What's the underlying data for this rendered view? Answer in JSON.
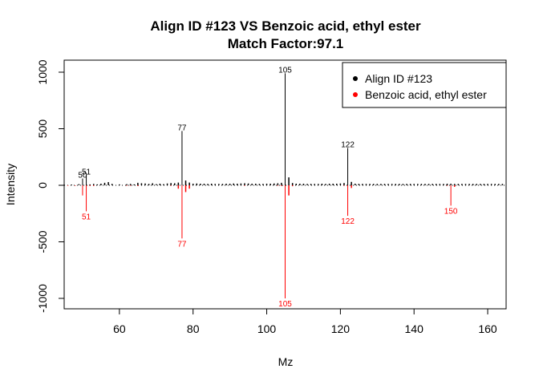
{
  "chart_data": {
    "type": "bar",
    "title_line1": "Align ID #123 VS Benzoic acid, ethyl ester",
    "title_line2": "Match Factor:97.1",
    "xlabel": "Mz",
    "ylabel": "Intensity",
    "xlim": [
      45,
      165
    ],
    "ylim": [
      -1080,
      1080
    ],
    "x_ticks": [
      60,
      80,
      100,
      120,
      140,
      160
    ],
    "y_ticks": [
      -1000,
      -500,
      0,
      500,
      1000
    ],
    "x_tick_labels": [
      "60",
      "80",
      "100",
      "120",
      "140",
      "160"
    ],
    "y_tick_labels": [
      "-1000",
      "-500",
      "0",
      "500",
      "1000"
    ],
    "legend_position": "top-right",
    "series": [
      {
        "name": "Align ID #123",
        "color": "#000000",
        "direction": "up",
        "peaks": [
          {
            "mz": 50,
            "intensity": 60
          },
          {
            "mz": 51,
            "intensity": 90
          },
          {
            "mz": 77,
            "intensity": 480
          },
          {
            "mz": 105,
            "intensity": 990
          },
          {
            "mz": 122,
            "intensity": 330
          }
        ],
        "labels": [
          {
            "mz": 50,
            "intensity": 60,
            "text": "50"
          },
          {
            "mz": 51,
            "intensity": 90,
            "text": "51"
          },
          {
            "mz": 77,
            "intensity": 480,
            "text": "77"
          },
          {
            "mz": 105,
            "intensity": 990,
            "text": "105"
          },
          {
            "mz": 122,
            "intensity": 330,
            "text": "122"
          }
        ],
        "minor_peaks": [
          {
            "mz": 45,
            "intensity": 6
          },
          {
            "mz": 47,
            "intensity": 6
          },
          {
            "mz": 49,
            "intensity": 10
          },
          {
            "mz": 52,
            "intensity": 8
          },
          {
            "mz": 53,
            "intensity": 12
          },
          {
            "mz": 54,
            "intensity": 8
          },
          {
            "mz": 55,
            "intensity": 14
          },
          {
            "mz": 56,
            "intensity": 22
          },
          {
            "mz": 57,
            "intensity": 28
          },
          {
            "mz": 58,
            "intensity": 12
          },
          {
            "mz": 60,
            "intensity": 8
          },
          {
            "mz": 62,
            "intensity": 10
          },
          {
            "mz": 63,
            "intensity": 12
          },
          {
            "mz": 64,
            "intensity": 8
          },
          {
            "mz": 65,
            "intensity": 22
          },
          {
            "mz": 66,
            "intensity": 18
          },
          {
            "mz": 67,
            "intensity": 16
          },
          {
            "mz": 68,
            "intensity": 12
          },
          {
            "mz": 69,
            "intensity": 18
          },
          {
            "mz": 70,
            "intensity": 10
          },
          {
            "mz": 71,
            "intensity": 14
          },
          {
            "mz": 72,
            "intensity": 10
          },
          {
            "mz": 73,
            "intensity": 16
          },
          {
            "mz": 74,
            "intensity": 20
          },
          {
            "mz": 75,
            "intensity": 18
          },
          {
            "mz": 76,
            "intensity": 24
          },
          {
            "mz": 78,
            "intensity": 42
          },
          {
            "mz": 79,
            "intensity": 24
          },
          {
            "mz": 80,
            "intensity": 14
          },
          {
            "mz": 81,
            "intensity": 16
          },
          {
            "mz": 82,
            "intensity": 14
          },
          {
            "mz": 83,
            "intensity": 14
          },
          {
            "mz": 84,
            "intensity": 12
          },
          {
            "mz": 85,
            "intensity": 14
          },
          {
            "mz": 86,
            "intensity": 12
          },
          {
            "mz": 87,
            "intensity": 12
          },
          {
            "mz": 88,
            "intensity": 12
          },
          {
            "mz": 89,
            "intensity": 14
          },
          {
            "mz": 90,
            "intensity": 14
          },
          {
            "mz": 91,
            "intensity": 16
          },
          {
            "mz": 92,
            "intensity": 14
          },
          {
            "mz": 93,
            "intensity": 16
          },
          {
            "mz": 94,
            "intensity": 18
          },
          {
            "mz": 95,
            "intensity": 16
          },
          {
            "mz": 96,
            "intensity": 14
          },
          {
            "mz": 97,
            "intensity": 14
          },
          {
            "mz": 98,
            "intensity": 12
          },
          {
            "mz": 99,
            "intensity": 12
          },
          {
            "mz": 100,
            "intensity": 14
          },
          {
            "mz": 101,
            "intensity": 14
          },
          {
            "mz": 102,
            "intensity": 16
          },
          {
            "mz": 103,
            "intensity": 18
          },
          {
            "mz": 104,
            "intensity": 22
          },
          {
            "mz": 106,
            "intensity": 70
          },
          {
            "mz": 107,
            "intensity": 20
          },
          {
            "mz": 108,
            "intensity": 14
          },
          {
            "mz": 109,
            "intensity": 14
          },
          {
            "mz": 110,
            "intensity": 14
          },
          {
            "mz": 111,
            "intensity": 12
          },
          {
            "mz": 112,
            "intensity": 12
          },
          {
            "mz": 113,
            "intensity": 12
          },
          {
            "mz": 114,
            "intensity": 12
          },
          {
            "mz": 115,
            "intensity": 14
          },
          {
            "mz": 116,
            "intensity": 12
          },
          {
            "mz": 117,
            "intensity": 14
          },
          {
            "mz": 118,
            "intensity": 14
          },
          {
            "mz": 119,
            "intensity": 14
          },
          {
            "mz": 120,
            "intensity": 16
          },
          {
            "mz": 121,
            "intensity": 20
          },
          {
            "mz": 123,
            "intensity": 30
          },
          {
            "mz": 124,
            "intensity": 14
          },
          {
            "mz": 125,
            "intensity": 12
          },
          {
            "mz": 126,
            "intensity": 12
          },
          {
            "mz": 127,
            "intensity": 12
          },
          {
            "mz": 128,
            "intensity": 12
          },
          {
            "mz": 129,
            "intensity": 12
          },
          {
            "mz": 130,
            "intensity": 12
          },
          {
            "mz": 131,
            "intensity": 12
          },
          {
            "mz": 132,
            "intensity": 12
          },
          {
            "mz": 133,
            "intensity": 12
          },
          {
            "mz": 134,
            "intensity": 12
          },
          {
            "mz": 135,
            "intensity": 12
          },
          {
            "mz": 136,
            "intensity": 12
          },
          {
            "mz": 137,
            "intensity": 12
          },
          {
            "mz": 138,
            "intensity": 12
          },
          {
            "mz": 139,
            "intensity": 12
          },
          {
            "mz": 140,
            "intensity": 12
          },
          {
            "mz": 141,
            "intensity": 12
          },
          {
            "mz": 142,
            "intensity": 12
          },
          {
            "mz": 143,
            "intensity": 12
          },
          {
            "mz": 144,
            "intensity": 12
          },
          {
            "mz": 145,
            "intensity": 12
          },
          {
            "mz": 146,
            "intensity": 12
          },
          {
            "mz": 147,
            "intensity": 12
          },
          {
            "mz": 148,
            "intensity": 12
          },
          {
            "mz": 149,
            "intensity": 14
          },
          {
            "mz": 150,
            "intensity": 14
          },
          {
            "mz": 151,
            "intensity": 12
          },
          {
            "mz": 152,
            "intensity": 12
          },
          {
            "mz": 153,
            "intensity": 12
          },
          {
            "mz": 154,
            "intensity": 12
          },
          {
            "mz": 155,
            "intensity": 12
          },
          {
            "mz": 156,
            "intensity": 12
          },
          {
            "mz": 157,
            "intensity": 12
          },
          {
            "mz": 158,
            "intensity": 12
          },
          {
            "mz": 159,
            "intensity": 12
          },
          {
            "mz": 160,
            "intensity": 12
          },
          {
            "mz": 161,
            "intensity": 12
          },
          {
            "mz": 162,
            "intensity": 12
          },
          {
            "mz": 163,
            "intensity": 12
          },
          {
            "mz": 164,
            "intensity": 12
          }
        ]
      },
      {
        "name": "Benzoic acid, ethyl ester",
        "color": "#FF0000",
        "direction": "down",
        "peaks": [
          {
            "mz": 50,
            "intensity": 90
          },
          {
            "mz": 51,
            "intensity": 230
          },
          {
            "mz": 77,
            "intensity": 470
          },
          {
            "mz": 105,
            "intensity": 1000
          },
          {
            "mz": 122,
            "intensity": 270
          },
          {
            "mz": 150,
            "intensity": 180
          }
        ],
        "labels": [
          {
            "mz": 51,
            "intensity": 230,
            "text": "51"
          },
          {
            "mz": 77,
            "intensity": 470,
            "text": "77"
          },
          {
            "mz": 105,
            "intensity": 1000,
            "text": "105"
          },
          {
            "mz": 122,
            "intensity": 270,
            "text": "122"
          },
          {
            "mz": 150,
            "intensity": 180,
            "text": "150"
          }
        ],
        "minor_peaks": [
          {
            "mz": 46,
            "intensity": 4
          },
          {
            "mz": 48,
            "intensity": 4
          },
          {
            "mz": 52,
            "intensity": 6
          },
          {
            "mz": 53,
            "intensity": 6
          },
          {
            "mz": 62,
            "intensity": 4
          },
          {
            "mz": 63,
            "intensity": 4
          },
          {
            "mz": 65,
            "intensity": 6
          },
          {
            "mz": 74,
            "intensity": 4
          },
          {
            "mz": 76,
            "intensity": 30
          },
          {
            "mz": 78,
            "intensity": 60
          },
          {
            "mz": 79,
            "intensity": 30
          },
          {
            "mz": 94,
            "intensity": 4
          },
          {
            "mz": 103,
            "intensity": 4
          },
          {
            "mz": 104,
            "intensity": 6
          },
          {
            "mz": 106,
            "intensity": 90
          },
          {
            "mz": 107,
            "intensity": 8
          },
          {
            "mz": 121,
            "intensity": 4
          },
          {
            "mz": 123,
            "intensity": 24
          },
          {
            "mz": 149,
            "intensity": 4
          },
          {
            "mz": 151,
            "intensity": 14
          }
        ]
      }
    ]
  }
}
